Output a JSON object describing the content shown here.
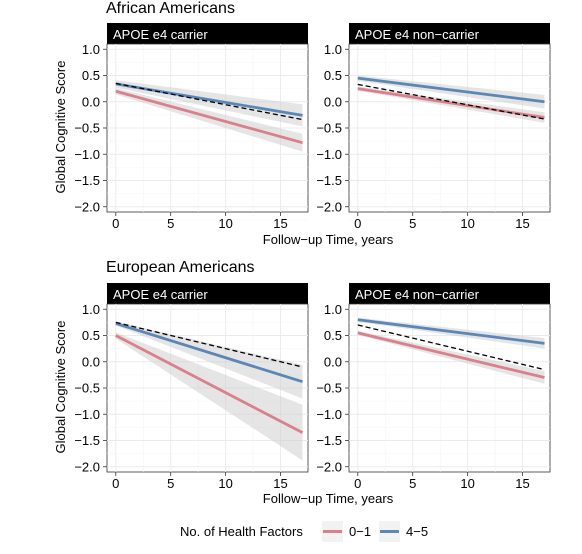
{
  "chart_data": [
    {
      "type": "line",
      "group_title": "African Americans",
      "ylabel": "Global Cognitive Score",
      "xlabel": "Follow−up Time, years",
      "xlim": [
        -0.8,
        17.5
      ],
      "ylim": [
        -2.1,
        1.1
      ],
      "x_ticks": [
        "0",
        "5",
        "10",
        "15"
      ],
      "y_ticks": [
        "1.0",
        "0.5",
        "0.0",
        "−0.5",
        "−1.0",
        "−1.5",
        "−2.0"
      ],
      "panels": [
        {
          "title": "APOE e4 carrier",
          "series": [
            {
              "name": "0−1",
              "x": [
                0,
                17
              ],
              "y": [
                0.2,
                -0.78
              ],
              "ci_lower": [
                0.14,
                -0.95
              ],
              "ci_upper": [
                0.26,
                -0.61
              ]
            },
            {
              "name": "4−5",
              "x": [
                0,
                17
              ],
              "y": [
                0.34,
                -0.26
              ],
              "ci_lower": [
                0.27,
                -0.47
              ],
              "ci_upper": [
                0.41,
                -0.05
              ]
            },
            {
              "name": "overall",
              "dashed": true,
              "x": [
                0,
                17
              ],
              "y": [
                0.35,
                -0.34
              ]
            }
          ]
        },
        {
          "title": "APOE e4 non−carrier",
          "series": [
            {
              "name": "0−1",
              "x": [
                0,
                17
              ],
              "y": [
                0.25,
                -0.3
              ],
              "ci_lower": [
                0.21,
                -0.4
              ],
              "ci_upper": [
                0.29,
                -0.2
              ]
            },
            {
              "name": "4−5",
              "x": [
                0,
                17
              ],
              "y": [
                0.45,
                0.0
              ],
              "ci_lower": [
                0.4,
                -0.13
              ],
              "ci_upper": [
                0.5,
                0.13
              ]
            },
            {
              "name": "overall",
              "dashed": true,
              "x": [
                0,
                17
              ],
              "y": [
                0.33,
                -0.33
              ]
            }
          ]
        }
      ]
    },
    {
      "type": "line",
      "group_title": "European Americans",
      "ylabel": "Global Cognitive Score",
      "xlabel": "Follow−up Time, years",
      "xlim": [
        -0.8,
        17.5
      ],
      "ylim": [
        -2.1,
        1.1
      ],
      "x_ticks": [
        "0",
        "5",
        "10",
        "15"
      ],
      "y_ticks": [
        "1.0",
        "0.5",
        "0.0",
        "−0.5",
        "−1.0",
        "−1.5",
        "−2.0"
      ],
      "panels": [
        {
          "title": "APOE e4 carrier",
          "series": [
            {
              "name": "0−1",
              "x": [
                0,
                17
              ],
              "y": [
                0.5,
                -1.35
              ],
              "ci_lower": [
                0.44,
                -1.88
              ],
              "ci_upper": [
                0.56,
                -0.82
              ]
            },
            {
              "name": "4−5",
              "x": [
                0,
                17
              ],
              "y": [
                0.73,
                -0.38
              ],
              "ci_lower": [
                0.69,
                -0.7
              ],
              "ci_upper": [
                0.77,
                -0.06
              ]
            },
            {
              "name": "overall",
              "dashed": true,
              "x": [
                0,
                17
              ],
              "y": [
                0.75,
                -0.1
              ]
            }
          ]
        },
        {
          "title": "APOE e4 non−carrier",
          "series": [
            {
              "name": "0−1",
              "x": [
                0,
                17
              ],
              "y": [
                0.55,
                -0.3
              ],
              "ci_lower": [
                0.51,
                -0.42
              ],
              "ci_upper": [
                0.59,
                -0.18
              ]
            },
            {
              "name": "4−5",
              "x": [
                0,
                17
              ],
              "y": [
                0.8,
                0.35
              ],
              "ci_lower": [
                0.76,
                0.25
              ],
              "ci_upper": [
                0.84,
                0.45
              ]
            },
            {
              "name": "overall",
              "dashed": true,
              "x": [
                0,
                17
              ],
              "y": [
                0.7,
                -0.15
              ]
            }
          ]
        }
      ]
    }
  ],
  "legend": {
    "title": "No. of Health Factors",
    "placement": "bottom",
    "items": [
      {
        "label": "0−1",
        "color": "#d9808c"
      },
      {
        "label": "4−5",
        "color": "#5b87b6"
      }
    ]
  },
  "colors": {
    "low": "#d9808c",
    "high": "#5b87b6",
    "overall": "#000000",
    "ci_band": "#cccccc",
    "strip": "#000000",
    "strip_text": "#ffffff",
    "grid": "#ebebeb"
  }
}
